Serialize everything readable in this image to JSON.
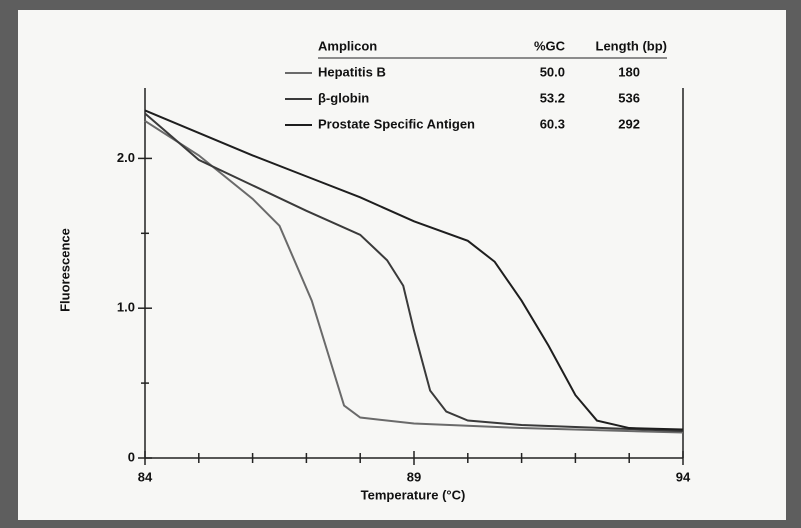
{
  "chart_data": {
    "type": "line",
    "xlabel": "Temperature (°C)",
    "ylabel": "Fluorescence",
    "xlim": [
      84,
      94
    ],
    "ylim": [
      0,
      2.47
    ],
    "xticks": [
      84,
      89,
      94
    ],
    "xminorticks": [
      85,
      86,
      87,
      88,
      90,
      91,
      92,
      93
    ],
    "yticks": [
      0,
      {
        "value": 1,
        "label": "1.0"
      },
      {
        "value": 2,
        "label": "2.0"
      }
    ],
    "yminorticks": [
      0.5,
      1.5
    ],
    "legend_headers": [
      "Amplicon",
      "%GC",
      "Length (bp)"
    ],
    "series": [
      {
        "name": "Hepatitis B",
        "gc": "50.0",
        "length": "180",
        "color": "#6a6a6a",
        "x": [
          84,
          85,
          86,
          86.5,
          86.8,
          87.1,
          87.4,
          87.7,
          88,
          89,
          91,
          94
        ],
        "values": [
          2.25,
          2.02,
          1.73,
          1.55,
          1.3,
          1.05,
          0.7,
          0.35,
          0.27,
          0.23,
          0.2,
          0.17
        ]
      },
      {
        "name": "β-globin",
        "gc": "53.2",
        "length": "536",
        "color": "#3a3a3a",
        "x": [
          84,
          85,
          86,
          87,
          88,
          88.5,
          88.8,
          89,
          89.3,
          89.6,
          90,
          91,
          94
        ],
        "values": [
          2.3,
          1.99,
          1.82,
          1.65,
          1.49,
          1.32,
          1.15,
          0.85,
          0.45,
          0.31,
          0.25,
          0.22,
          0.18
        ]
      },
      {
        "name": "Prostate Specific Antigen",
        "gc": "60.3",
        "length": "292",
        "color": "#1e1e1e",
        "x": [
          84,
          85,
          86,
          87,
          88,
          89,
          90,
          90.5,
          91,
          91.5,
          92,
          92.4,
          93,
          94
        ],
        "values": [
          2.32,
          2.17,
          2.02,
          1.88,
          1.74,
          1.58,
          1.45,
          1.31,
          1.05,
          0.75,
          0.42,
          0.25,
          0.2,
          0.19
        ]
      }
    ]
  }
}
